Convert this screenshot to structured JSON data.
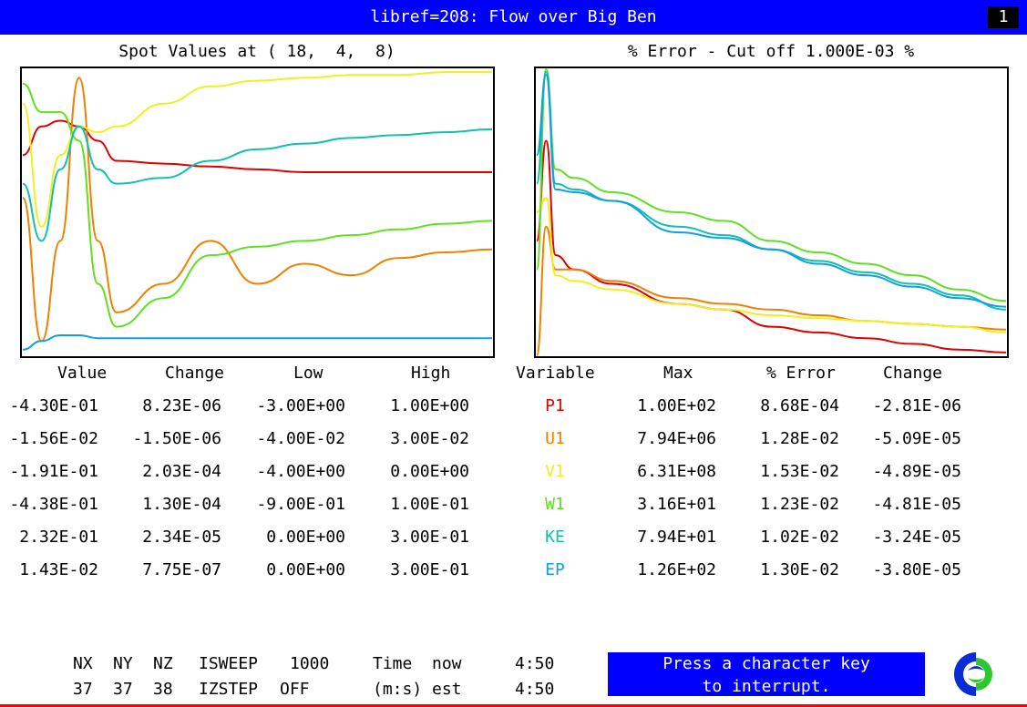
{
  "header": {
    "title": "libref=208: Flow over Big Ben",
    "page": "1"
  },
  "left_panel": {
    "title": "Spot Values at ( 18,  4,  8)"
  },
  "right_panel": {
    "title": "% Error - Cut off 1.000E-03 %"
  },
  "colors": {
    "P1": "#e00000",
    "U1": "#f08000",
    "V1": "#f0f020",
    "W1": "#60e020",
    "KE": "#10c0b0",
    "EP": "#10a0e0"
  },
  "spot_table": {
    "headers": [
      "Value",
      "Change",
      "Low",
      "High"
    ],
    "rows": [
      [
        "-4.30E-01",
        "8.23E-06",
        "-3.00E+00",
        "1.00E+00"
      ],
      [
        "-1.56E-02",
        "-1.50E-06",
        "-4.00E-02",
        "3.00E-02"
      ],
      [
        "-1.91E-01",
        "2.03E-04",
        "-4.00E+00",
        "0.00E+00"
      ],
      [
        "-4.38E-01",
        "1.30E-04",
        "-9.00E-01",
        "1.00E-01"
      ],
      [
        "2.32E-01",
        "2.34E-05",
        "0.00E+00",
        "3.00E-01"
      ],
      [
        "1.43E-02",
        "7.75E-07",
        "0.00E+00",
        "3.00E-01"
      ]
    ]
  },
  "error_table": {
    "headers": [
      "Variable",
      "Max",
      "% Error",
      "Change"
    ],
    "rows": [
      [
        "P1",
        "1.00E+02",
        "8.68E-04",
        "-2.81E-06"
      ],
      [
        "U1",
        "7.94E+06",
        "1.28E-02",
        "-5.09E-05"
      ],
      [
        "V1",
        "6.31E+08",
        "1.53E-02",
        "-4.89E-05"
      ],
      [
        "W1",
        "3.16E+01",
        "1.23E-02",
        "-4.81E-05"
      ],
      [
        "KE",
        "7.94E+01",
        "1.02E-02",
        "-3.24E-05"
      ],
      [
        "EP",
        "1.26E+02",
        "1.30E-02",
        "-3.80E-05"
      ]
    ]
  },
  "footer": {
    "nx_label": "NX",
    "ny_label": "NY",
    "nz_label": "NZ",
    "nx": "37",
    "ny": "37",
    "nz": "38",
    "isweep_label": "ISWEEP",
    "isweep": "1000",
    "izstep_label": "IZSTEP",
    "izstep": "OFF",
    "time_label": "Time",
    "now_label": "now",
    "now_value": "4:50",
    "ms_label": "(m:s)",
    "est_label": "est",
    "est_value": "4:50",
    "message_line1": "Press a character key",
    "message_line2": "to interrupt."
  },
  "logo": {
    "icon": "cham-logo-icon"
  },
  "chart_data": [
    {
      "type": "line",
      "title": "Spot Values at ( 18,  4,  8)",
      "x": [
        0,
        40,
        80,
        120,
        160,
        200,
        300,
        400,
        500,
        600,
        700,
        800,
        900,
        1000
      ],
      "ylim": [
        0,
        1
      ],
      "grid": false,
      "note_axes": "no tick labels shown; values normalized to plot height",
      "series": [
        {
          "name": "P1",
          "values": [
            0.7,
            0.8,
            0.82,
            0.8,
            0.75,
            0.68,
            0.67,
            0.66,
            0.65,
            0.64,
            0.64,
            0.64,
            0.64,
            0.64
          ]
        },
        {
          "name": "U1",
          "values": [
            0.55,
            0.05,
            0.4,
            0.97,
            0.4,
            0.15,
            0.25,
            0.4,
            0.25,
            0.32,
            0.28,
            0.34,
            0.36,
            0.37
          ]
        },
        {
          "name": "V1",
          "values": [
            0.88,
            0.45,
            0.7,
            0.8,
            0.78,
            0.8,
            0.88,
            0.94,
            0.96,
            0.97,
            0.98,
            0.98,
            0.99,
            0.99
          ]
        },
        {
          "name": "W1",
          "values": [
            0.95,
            0.85,
            0.85,
            0.75,
            0.25,
            0.1,
            0.2,
            0.35,
            0.38,
            0.4,
            0.42,
            0.44,
            0.46,
            0.47
          ]
        },
        {
          "name": "KE",
          "values": [
            0.6,
            0.4,
            0.65,
            0.8,
            0.65,
            0.6,
            0.62,
            0.68,
            0.72,
            0.74,
            0.76,
            0.77,
            0.78,
            0.79
          ]
        },
        {
          "name": "EP",
          "values": [
            0.02,
            0.05,
            0.07,
            0.07,
            0.06,
            0.06,
            0.06,
            0.06,
            0.06,
            0.06,
            0.06,
            0.06,
            0.06,
            0.06
          ]
        }
      ]
    },
    {
      "type": "line",
      "title": "% Error - Cut off 1.000E-03 %",
      "x": [
        0,
        20,
        40,
        80,
        160,
        300,
        400,
        500,
        600,
        700,
        800,
        900,
        1000
      ],
      "ylim": [
        0,
        1
      ],
      "grid": false,
      "note_axes": "no tick labels shown; values normalized to plot height",
      "series": [
        {
          "name": "P1",
          "values": [
            0.4,
            0.75,
            0.35,
            0.3,
            0.25,
            0.18,
            0.16,
            0.1,
            0.08,
            0.06,
            0.04,
            0.02,
            0.01
          ]
        },
        {
          "name": "U1",
          "values": [
            0.0,
            0.45,
            0.3,
            0.3,
            0.26,
            0.2,
            0.18,
            0.16,
            0.14,
            0.12,
            0.11,
            0.1,
            0.09
          ]
        },
        {
          "name": "V1",
          "values": [
            0.5,
            0.55,
            0.28,
            0.26,
            0.23,
            0.18,
            0.16,
            0.14,
            0.13,
            0.12,
            0.11,
            0.1,
            0.08
          ]
        },
        {
          "name": "W1",
          "values": [
            0.3,
            1.0,
            0.65,
            0.62,
            0.57,
            0.5,
            0.47,
            0.4,
            0.36,
            0.32,
            0.28,
            0.23,
            0.19
          ]
        },
        {
          "name": "KE",
          "values": [
            0.6,
            0.99,
            0.6,
            0.58,
            0.54,
            0.45,
            0.42,
            0.37,
            0.33,
            0.29,
            0.25,
            0.21,
            0.16
          ]
        },
        {
          "name": "EP",
          "values": [
            0.7,
            0.98,
            0.58,
            0.57,
            0.54,
            0.43,
            0.41,
            0.37,
            0.32,
            0.28,
            0.24,
            0.2,
            0.17
          ]
        }
      ]
    }
  ]
}
